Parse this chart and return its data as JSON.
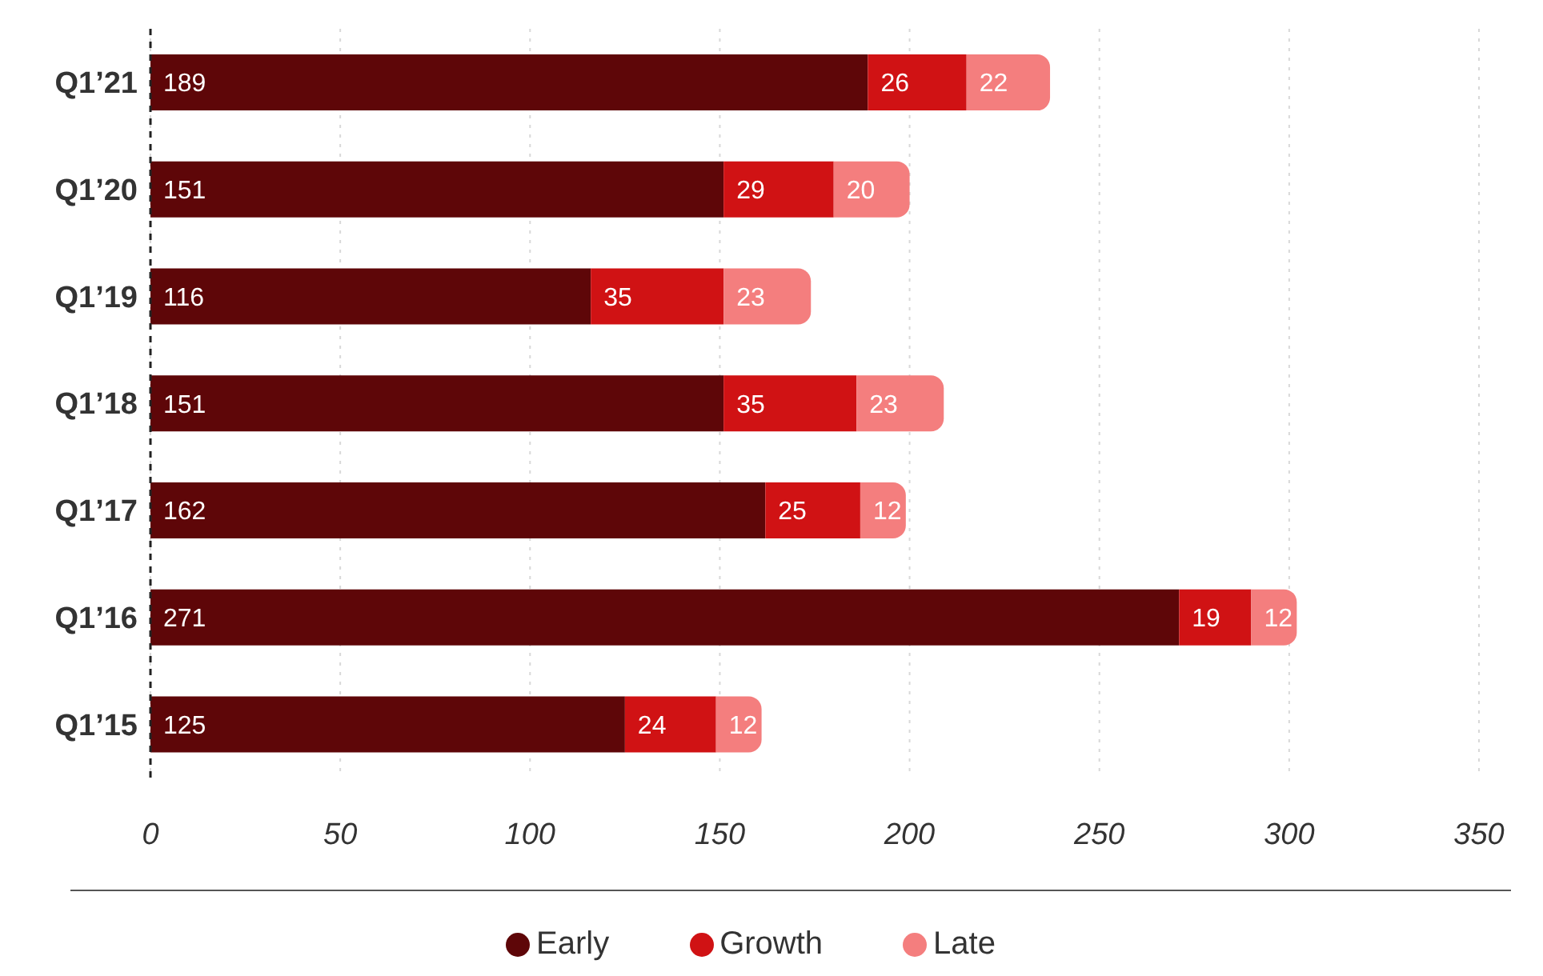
{
  "chart_data": {
    "type": "bar",
    "orientation": "horizontal",
    "stacked": true,
    "categories": [
      "Q1’21",
      "Q1’20",
      "Q1’19",
      "Q1’18",
      "Q1’17",
      "Q1’16",
      "Q1’15"
    ],
    "series": [
      {
        "name": "Early",
        "color": "#5e0608",
        "values": [
          189,
          151,
          116,
          151,
          162,
          271,
          125
        ]
      },
      {
        "name": "Growth",
        "color": "#d01214",
        "values": [
          26,
          29,
          35,
          35,
          25,
          19,
          24
        ]
      },
      {
        "name": "Late",
        "color": "#f47e7e",
        "values": [
          22,
          20,
          23,
          23,
          12,
          12,
          12
        ]
      }
    ],
    "xlim": [
      0,
      350
    ],
    "xticks": [
      0,
      50,
      100,
      150,
      200,
      250,
      300,
      350
    ],
    "grid": "x",
    "legend": "bottom",
    "data_labels": true
  }
}
